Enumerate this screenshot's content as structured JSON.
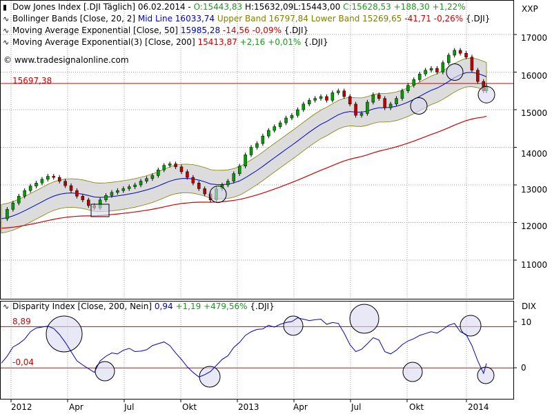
{
  "header": {
    "line1": {
      "title": "Dow Jones Index [.DJI  Täglich] 06.02.2014",
      "open": "O:15443,83",
      "high": "H:15632,09",
      "low": "L:15443,00",
      "close": "C:15628,53",
      "change": "+188,30",
      "change_pct": "+1,22%"
    },
    "line2": {
      "name": "Bollinger Bands [Close, 20, 2]",
      "mid": "Mid Line 16033,74",
      "upper": "Upper Band 16797,84",
      "lower": "Lower Band 15269,65",
      "diff": "-41,71",
      "diff_pct": "-0,26%",
      "sym": "{.DJI}"
    },
    "line3": {
      "name": "Moving Average Exponential [Close, 50]",
      "value": "15985,28",
      "change": "-14,56",
      "change_pct": "-0,09%",
      "sym": "{.DJI}"
    },
    "line4": {
      "name": "Moving Average Exponential(3) [Close, 200]",
      "value": "15413,87",
      "change": "+2,16",
      "change_pct": "+0,01%",
      "sym": "{.DJI}"
    },
    "copyright": "© www.tradesignalonline.com"
  },
  "lower_header": {
    "name": "Disparity Index [Close, 200, Nein]",
    "value": "0,94",
    "change": "+1,19",
    "change_pct": "+479,56%",
    "sym": "{.DJI}"
  },
  "colors": {
    "price_up": "#00a000",
    "price_down": "#c00000",
    "bollinger_fill": "#d8d8d8",
    "bollinger_band": "#808000",
    "ema50": "#0000cc",
    "ema200": "#d00000",
    "level": "#d00000",
    "disparity": "#0000cc",
    "grid": "#9a9a9a",
    "circle_fill": "#d8d8f0",
    "circle_stroke": "#000000"
  },
  "chart_data": [
    {
      "type": "line",
      "description_key": "upper",
      "y_axis_label": "XXP",
      "ylim": [
        10000,
        17400
      ],
      "y_ticks": [
        11000,
        12000,
        13000,
        14000,
        15000,
        16000,
        17000
      ],
      "x_ticks": [
        "2012",
        "Apr",
        "Jul",
        "Okt",
        "2013",
        "Apr",
        "Jul",
        "Okt",
        "2014"
      ],
      "horizontal_level": {
        "value": 15697.38,
        "label": "15697,38"
      },
      "series": [
        {
          "name": "Dow Jones Index",
          "points": [
            [
              0,
              12100
            ],
            [
              2,
              12350
            ],
            [
              4,
              12520
            ],
            [
              6,
              12700
            ],
            [
              8,
              12850
            ],
            [
              10,
              12970
            ],
            [
              12,
              13050
            ],
            [
              14,
              13150
            ],
            [
              16,
              13230
            ],
            [
              18,
              13200
            ],
            [
              20,
              13100
            ],
            [
              22,
              12980
            ],
            [
              24,
              12850
            ],
            [
              26,
              12700
            ],
            [
              28,
              12600
            ],
            [
              30,
              12450
            ],
            [
              32,
              12390
            ],
            [
              34,
              12600
            ],
            [
              36,
              12720
            ],
            [
              38,
              12800
            ],
            [
              40,
              12850
            ],
            [
              42,
              12900
            ],
            [
              44,
              12950
            ],
            [
              46,
              13000
            ],
            [
              48,
              13100
            ],
            [
              50,
              13170
            ],
            [
              52,
              13250
            ],
            [
              54,
              13400
            ],
            [
              56,
              13520
            ],
            [
              58,
              13560
            ],
            [
              60,
              13480
            ],
            [
              62,
              13350
            ],
            [
              64,
              13200
            ],
            [
              66,
              13050
            ],
            [
              68,
              12900
            ],
            [
              70,
              12760
            ],
            [
              72,
              12600
            ],
            [
              74,
              12900
            ],
            [
              76,
              13000
            ],
            [
              78,
              13100
            ],
            [
              80,
              13300
            ],
            [
              82,
              13500
            ],
            [
              84,
              13800
            ],
            [
              86,
              14000
            ],
            [
              88,
              14100
            ],
            [
              90,
              14300
            ],
            [
              92,
              14450
            ],
            [
              94,
              14550
            ],
            [
              96,
              14650
            ],
            [
              98,
              14780
            ],
            [
              100,
              14850
            ],
            [
              102,
              15000
            ],
            [
              104,
              15150
            ],
            [
              106,
              15250
            ],
            [
              108,
              15300
            ],
            [
              110,
              15350
            ],
            [
              112,
              15250
            ],
            [
              114,
              15450
            ],
            [
              116,
              15500
            ],
            [
              118,
              15350
            ],
            [
              120,
              15150
            ],
            [
              122,
              14850
            ],
            [
              124,
              14900
            ],
            [
              126,
              15200
            ],
            [
              128,
              15400
            ],
            [
              130,
              15300
            ],
            [
              132,
              15050
            ],
            [
              134,
              15150
            ],
            [
              136,
              15300
            ],
            [
              138,
              15500
            ],
            [
              140,
              15650
            ],
            [
              142,
              15800
            ],
            [
              144,
              15950
            ],
            [
              146,
              16050
            ],
            [
              148,
              16100
            ],
            [
              150,
              16000
            ],
            [
              152,
              16250
            ],
            [
              154,
              16450
            ],
            [
              156,
              16580
            ],
            [
              158,
              16500
            ],
            [
              160,
              16400
            ],
            [
              162,
              16050
            ],
            [
              164,
              15750
            ],
            [
              166,
              15500
            ],
            [
              167,
              15628
            ]
          ]
        }
      ],
      "overlays": [
        {
          "name": "Bollinger Bands",
          "values_key": "bb"
        },
        {
          "name": "Moving Average Exponential 50"
        },
        {
          "name": "Moving Average Exponential 200"
        }
      ]
    },
    {
      "type": "line",
      "description_key": "lower",
      "y_axis_label": "DIX",
      "ylim": [
        -5,
        12.5
      ],
      "y_ticks": [
        0,
        10
      ],
      "levels": [
        {
          "value": 8.89,
          "label": "8,89"
        },
        {
          "value": -0.04,
          "label": "-0,04"
        }
      ],
      "series": [
        {
          "name": "Disparity Index",
          "points": [
            [
              0,
              1.0
            ],
            [
              2,
              2.5
            ],
            [
              4,
              4.5
            ],
            [
              6,
              5.2
            ],
            [
              8,
              6.2
            ],
            [
              10,
              7.8
            ],
            [
              12,
              8.6
            ],
            [
              14,
              8.8
            ],
            [
              16,
              9.0
            ],
            [
              18,
              8.5
            ],
            [
              20,
              7.2
            ],
            [
              22,
              5.5
            ],
            [
              24,
              3.5
            ],
            [
              26,
              1.5
            ],
            [
              28,
              0.6
            ],
            [
              30,
              -0.2
            ],
            [
              32,
              -1.0
            ],
            [
              34,
              1.5
            ],
            [
              36,
              2.5
            ],
            [
              38,
              3.2
            ],
            [
              40,
              3.0
            ],
            [
              42,
              3.8
            ],
            [
              44,
              4.2
            ],
            [
              46,
              3.5
            ],
            [
              48,
              3.6
            ],
            [
              50,
              3.9
            ],
            [
              52,
              4.8
            ],
            [
              54,
              5.2
            ],
            [
              56,
              5.6
            ],
            [
              58,
              4.8
            ],
            [
              60,
              3.2
            ],
            [
              62,
              1.8
            ],
            [
              64,
              0.2
            ],
            [
              66,
              -1.0
            ],
            [
              68,
              -2.0
            ],
            [
              70,
              -1.5
            ],
            [
              72,
              -0.8
            ],
            [
              74,
              0.5
            ],
            [
              76,
              1.8
            ],
            [
              78,
              2.6
            ],
            [
              80,
              4.4
            ],
            [
              82,
              5.5
            ],
            [
              84,
              7.0
            ],
            [
              86,
              7.8
            ],
            [
              88,
              8.3
            ],
            [
              90,
              8.4
            ],
            [
              92,
              9.2
            ],
            [
              94,
              8.8
            ],
            [
              96,
              9.4
            ],
            [
              98,
              9.8
            ],
            [
              100,
              10.0
            ],
            [
              102,
              10.8
            ],
            [
              104,
              10.5
            ],
            [
              106,
              10.2
            ],
            [
              108,
              10.4
            ],
            [
              110,
              10.5
            ],
            [
              112,
              9.4
            ],
            [
              114,
              9.8
            ],
            [
              116,
              9.6
            ],
            [
              118,
              7.5
            ],
            [
              120,
              5.0
            ],
            [
              122,
              3.5
            ],
            [
              124,
              4.0
            ],
            [
              126,
              5.2
            ],
            [
              128,
              6.5
            ],
            [
              130,
              6.0
            ],
            [
              132,
              3.5
            ],
            [
              134,
              3.0
            ],
            [
              136,
              3.8
            ],
            [
              138,
              5.0
            ],
            [
              140,
              5.8
            ],
            [
              142,
              6.3
            ],
            [
              144,
              7.0
            ],
            [
              146,
              7.4
            ],
            [
              148,
              7.8
            ],
            [
              150,
              7.5
            ],
            [
              152,
              8.3
            ],
            [
              154,
              9.2
            ],
            [
              156,
              9.6
            ],
            [
              158,
              7.8
            ],
            [
              160,
              7.2
            ],
            [
              162,
              4.8
            ],
            [
              164,
              1.5
            ],
            [
              166,
              -1.2
            ],
            [
              167,
              0.94
            ]
          ]
        }
      ]
    }
  ],
  "x_tick_labels": [
    "2012",
    "Apr",
    "Jul",
    "Okt",
    "2013",
    "Apr",
    "Jul",
    "Okt",
    "2014"
  ],
  "upper_y_labels": [
    "17000",
    "16000",
    "15000",
    "14000",
    "13000",
    "12000",
    "11000"
  ],
  "upper_axis_title": "XXP",
  "lower_axis_title": "DIX",
  "lower_y_labels": [
    "10",
    "0"
  ],
  "upper_level_label": "15697,38",
  "lower_level_labels": [
    "8,89",
    "-0,04"
  ]
}
